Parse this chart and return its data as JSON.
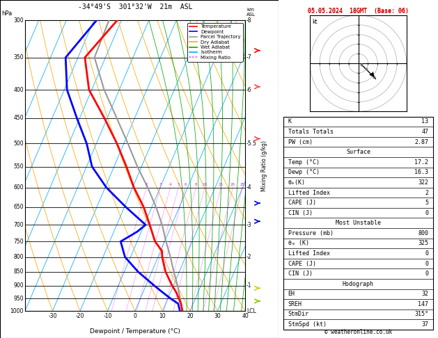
{
  "title_left": "-34°49'S  301°32'W  21m  ASL",
  "title_right": "05.05.2024  18GMT  (Base: 06)",
  "xlabel": "Dewpoint / Temperature (°C)",
  "copyright": "© weatheronline.co.uk",
  "pressures": [
    300,
    350,
    400,
    450,
    500,
    550,
    600,
    650,
    700,
    750,
    800,
    850,
    900,
    950,
    1000
  ],
  "pmin": 300,
  "pmax": 1000,
  "skew_factor": 45,
  "xlim": [
    -40,
    40
  ],
  "xticks": [
    -30,
    -20,
    -10,
    0,
    10,
    20,
    30,
    40
  ],
  "temp_profile": {
    "pressure": [
      1000,
      970,
      950,
      925,
      900,
      850,
      800,
      780,
      750,
      700,
      650,
      600,
      550,
      500,
      450,
      400,
      350,
      300
    ],
    "temp": [
      17.2,
      15.5,
      14.0,
      12.0,
      9.5,
      5.0,
      1.5,
      0.5,
      -3.5,
      -8.0,
      -13.0,
      -19.5,
      -25.5,
      -32.5,
      -41.0,
      -51.0,
      -57.5,
      -51.5
    ],
    "color": "#ff0000",
    "lw": 2.0
  },
  "dewp_profile": {
    "pressure": [
      1000,
      970,
      950,
      925,
      900,
      850,
      800,
      750,
      720,
      700,
      650,
      600,
      550,
      500,
      450,
      400,
      350,
      300
    ],
    "temp": [
      16.3,
      14.5,
      11.0,
      7.0,
      3.0,
      -5.0,
      -12.0,
      -16.0,
      -11.5,
      -9.5,
      -19.5,
      -29.5,
      -38.0,
      -43.5,
      -51.0,
      -59.0,
      -64.5,
      -59.0
    ],
    "color": "#0000ff",
    "lw": 2.0
  },
  "parcel_profile": {
    "pressure": [
      1000,
      950,
      900,
      850,
      800,
      750,
      700,
      650,
      600,
      550,
      500,
      450,
      400,
      350,
      300
    ],
    "temp": [
      17.2,
      14.5,
      11.5,
      8.0,
      4.5,
      0.5,
      -3.5,
      -8.5,
      -14.5,
      -21.5,
      -28.5,
      -36.5,
      -45.5,
      -54.0,
      -54.5
    ],
    "color": "#999999",
    "lw": 1.5
  },
  "km_right": [
    [
      300,
      "-8"
    ],
    [
      350,
      "-7"
    ],
    [
      400,
      "-6"
    ],
    [
      450,
      ""
    ],
    [
      500,
      "-5.5"
    ],
    [
      550,
      ""
    ],
    [
      600,
      "-4"
    ],
    [
      650,
      ""
    ],
    [
      700,
      "-3"
    ],
    [
      750,
      ""
    ],
    [
      800,
      "-2"
    ],
    [
      850,
      ""
    ],
    [
      900,
      "-1"
    ],
    [
      950,
      ""
    ],
    [
      1000,
      "LCL"
    ]
  ],
  "mixing_ratios": [
    2,
    3,
    4,
    5,
    6,
    8,
    10,
    15,
    20,
    25
  ],
  "legend_items": [
    {
      "label": "Temperature",
      "color": "#ff0000",
      "ls": "-"
    },
    {
      "label": "Dewpoint",
      "color": "#0000ff",
      "ls": "-"
    },
    {
      "label": "Parcel Trajectory",
      "color": "#999999",
      "ls": "-"
    },
    {
      "label": "Dry Adiabat",
      "color": "#ffa500",
      "ls": "-"
    },
    {
      "label": "Wet Adiabat",
      "color": "#00aa00",
      "ls": "-"
    },
    {
      "label": "Isotherm",
      "color": "#00aaff",
      "ls": "-"
    },
    {
      "label": "Mixing Ratio",
      "color": "#ff00ff",
      "ls": ":"
    }
  ],
  "wind_barbs": [
    {
      "p": 340,
      "color": "#ff0000",
      "flag": "heavy"
    },
    {
      "p": 395,
      "color": "#ff4444",
      "flag": "medium"
    },
    {
      "p": 490,
      "color": "#ff4444",
      "flag": "medium"
    },
    {
      "p": 640,
      "color": "#0000ff",
      "flag": "light"
    },
    {
      "p": 690,
      "color": "#0000cc",
      "flag": "light"
    },
    {
      "p": 910,
      "color": "#cccc00",
      "flag": "light"
    },
    {
      "p": 960,
      "color": "#88cc00",
      "flag": "light"
    }
  ],
  "hodograph": {
    "u": [
      3,
      5,
      8,
      12,
      16,
      18,
      14
    ],
    "v": [
      -1,
      -3,
      -6,
      -10,
      -14,
      -16,
      -11
    ],
    "arrow_u": [
      14,
      18
    ],
    "arrow_v": [
      -11,
      -16
    ]
  },
  "stats": {
    "K": "13",
    "Totals Totals": "47",
    "PW (cm)": "2.87",
    "surface_label": "Surface",
    "Temp (°C)": "17.2",
    "Dewp (°C)": "16.3",
    "theta_e_K": "322",
    "Lifted Index surf": "2",
    "CAPE (J) surf": "5",
    "CIN (J) surf": "0",
    "mu_label": "Most Unstable",
    "Pressure (mb)": "800",
    "theta_e_mu": "325",
    "Lifted Index mu": "0",
    "CAPE (J) mu": "0",
    "CIN (J) mu": "0",
    "hodo_label": "Hodograph",
    "EH": "32",
    "SREH": "147",
    "StmDir": "315°",
    "StmSpd (kt)": "37"
  }
}
